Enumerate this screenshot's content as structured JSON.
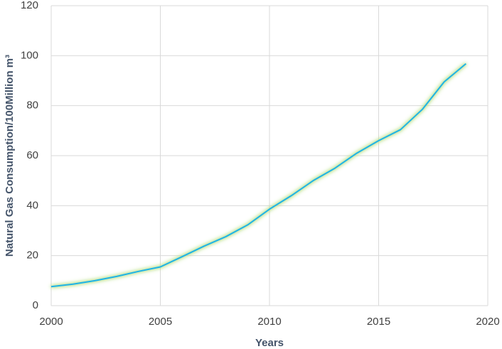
{
  "chart_data": {
    "type": "line",
    "x_label": "Years",
    "y_label": "Natural Gas Consumption/100Million m³",
    "x": [
      2000,
      2001,
      2002,
      2003,
      2004,
      2005,
      2006,
      2007,
      2008,
      2009,
      2010,
      2011,
      2012,
      2013,
      2014,
      2015,
      2016,
      2017,
      2018,
      2019
    ],
    "values": [
      7.6,
      8.6,
      10,
      11.7,
      13.7,
      15.5,
      19.6,
      23.8,
      27.6,
      32.3,
      38.6,
      44,
      50,
      55,
      61,
      66,
      70.4,
      78.5,
      89.5,
      96.8
    ],
    "color": "#1fb3e6",
    "xlim": [
      2000,
      2020
    ],
    "xticks": [
      2000,
      2005,
      2010,
      2015,
      2020
    ],
    "ylim": [
      0,
      120
    ],
    "yticks": [
      0,
      20,
      40,
      60,
      80,
      100,
      120
    ],
    "grid": true
  }
}
